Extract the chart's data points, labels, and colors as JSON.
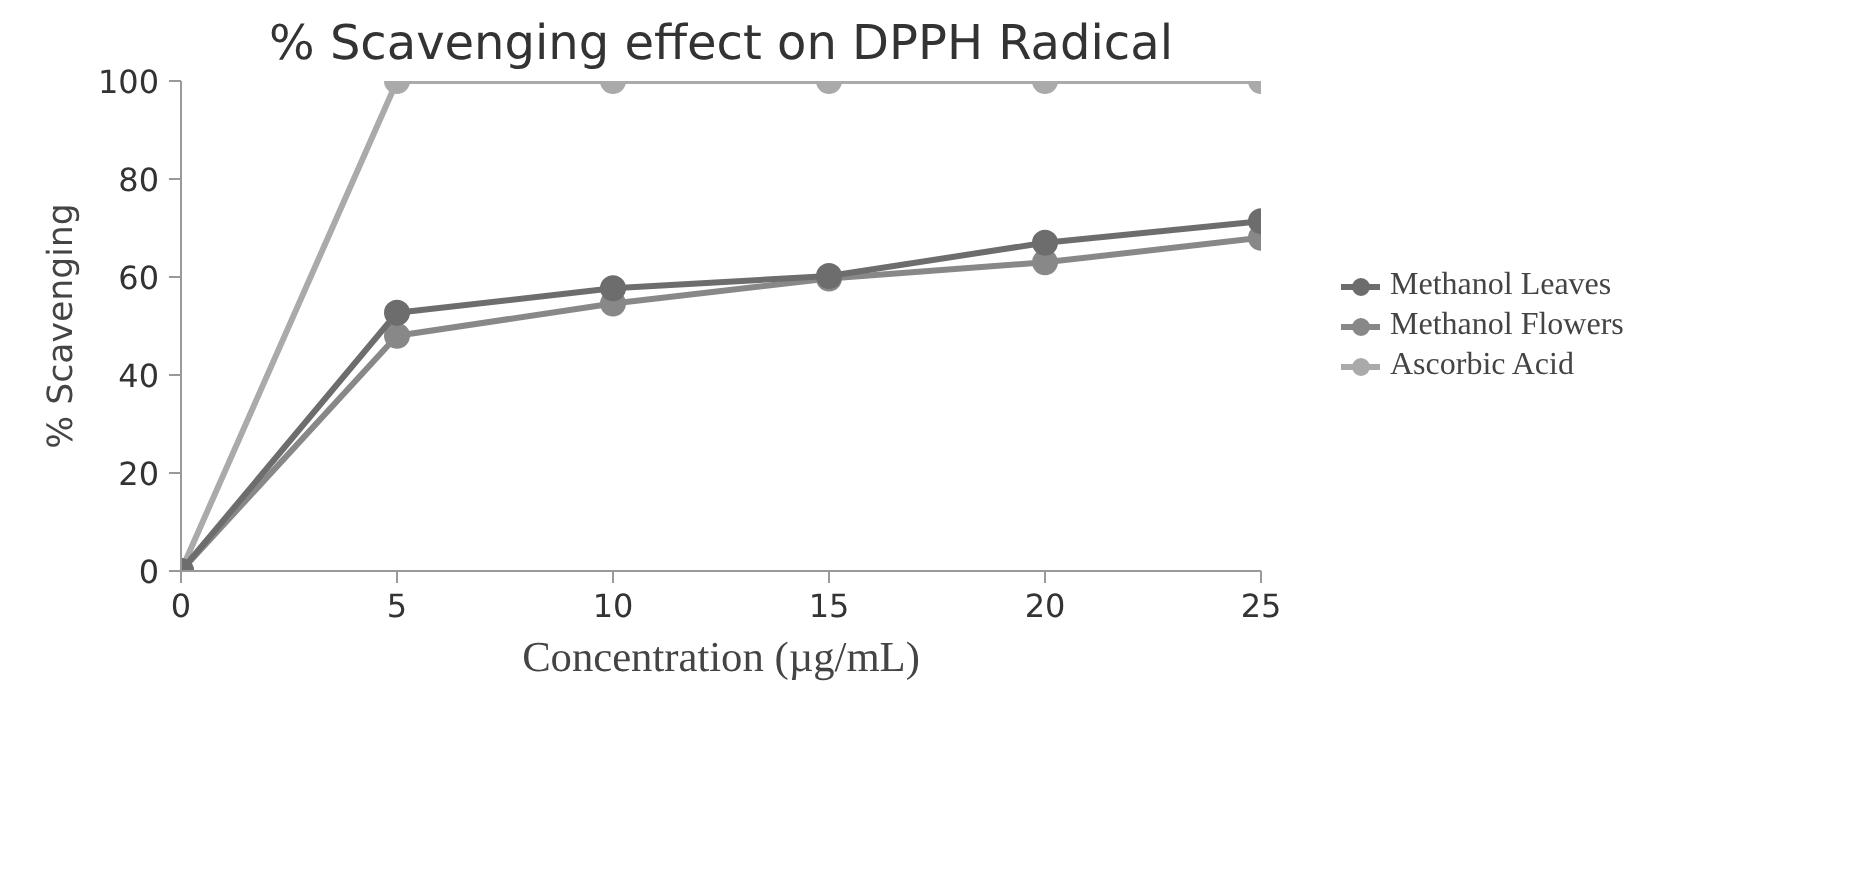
{
  "chart_data": {
    "type": "line",
    "title": "% Scavenging effect on DPPH Radical",
    "xlabel": "Concentration (µg/mL)",
    "ylabel": "% Scavenging",
    "x": [
      0,
      5,
      10,
      15,
      20,
      25
    ],
    "series": [
      {
        "name": "Methanol Leaves",
        "color": "#6d6d6d",
        "values": [
          0,
          52.7,
          57.7,
          60.2,
          67,
          71.4
        ]
      },
      {
        "name": "Methanol Flowers",
        "color": "#888888",
        "values": [
          0,
          48,
          54.6,
          59.7,
          63,
          68
        ]
      },
      {
        "name": "Ascorbic Acid",
        "color": "#aaaaaa",
        "values": [
          0,
          100,
          100,
          100,
          100,
          100
        ]
      }
    ],
    "xlim": [
      0,
      25
    ],
    "xticks": [
      0,
      5,
      10,
      15,
      20,
      25
    ],
    "ylim": [
      0,
      100
    ],
    "yticks": [
      0,
      20,
      40,
      60,
      80,
      100
    ],
    "grid": false,
    "legend": "right",
    "marker": "circle",
    "line_style": "solid"
  }
}
